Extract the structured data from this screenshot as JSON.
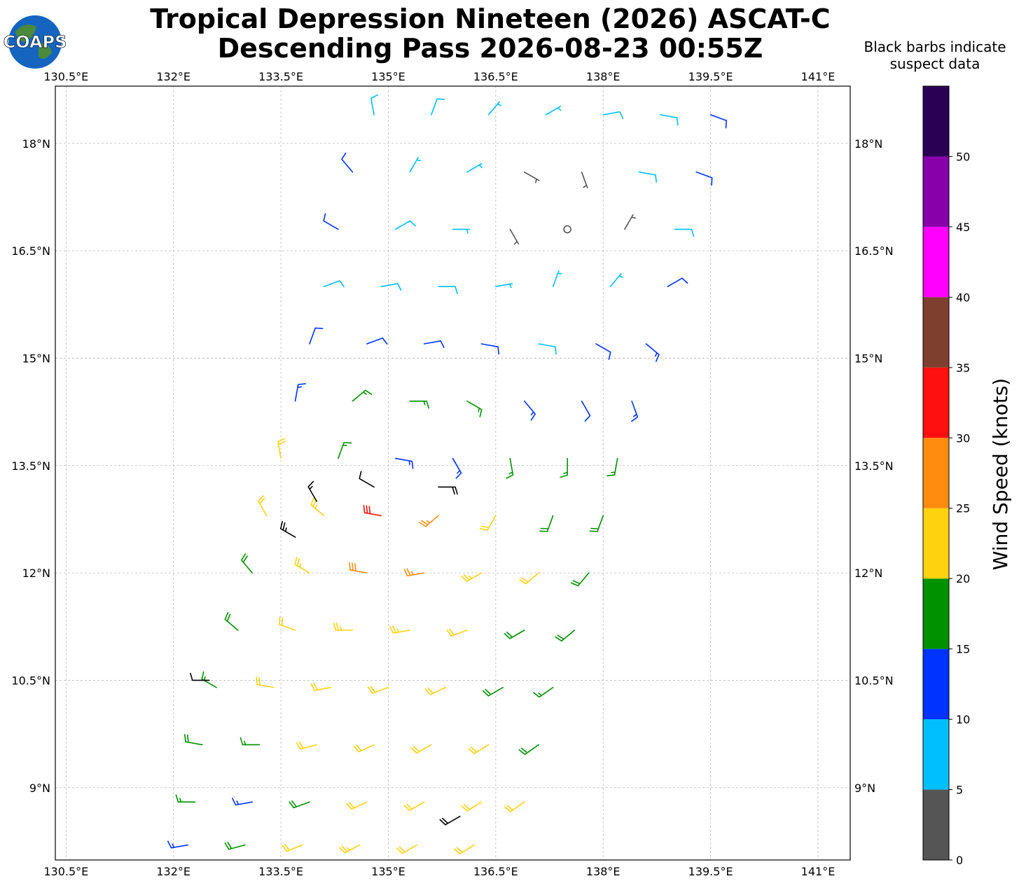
{
  "logo": "COAPS",
  "chart_data": {
    "type": "barbs",
    "title": [
      "Tropical Depression Nineteen (2026) ASCAT-C",
      "Descending Pass 2026-08-23 00:55Z"
    ],
    "note": [
      "Black barbs indicate",
      "suspect data"
    ],
    "xlim": [
      130.35,
      141.45
    ],
    "ylim": [
      7.99,
      18.8
    ],
    "xticks": [
      {
        "value": 130.5,
        "label": "130.5°E"
      },
      {
        "value": 132,
        "label": "132°E"
      },
      {
        "value": 133.5,
        "label": "133.5°E"
      },
      {
        "value": 135,
        "label": "135°E"
      },
      {
        "value": 136.5,
        "label": "136.5°E"
      },
      {
        "value": 138,
        "label": "138°E"
      },
      {
        "value": 139.5,
        "label": "139.5°E"
      },
      {
        "value": 141,
        "label": "141°E"
      }
    ],
    "yticks": [
      {
        "value": 9,
        "label": "9°N"
      },
      {
        "value": 10.5,
        "label": "10.5°N"
      },
      {
        "value": 12,
        "label": "12°N"
      },
      {
        "value": 13.5,
        "label": "13.5°N"
      },
      {
        "value": 15,
        "label": "15°N"
      },
      {
        "value": 16.5,
        "label": "16.5°N"
      },
      {
        "value": 18,
        "label": "18°N"
      }
    ],
    "grid": true,
    "suspect_color": "#000000",
    "barbs": [
      [
        134.8,
        18.4,
        8,
        350
      ],
      [
        135.6,
        18.4,
        8,
        20
      ],
      [
        136.4,
        18.4,
        7,
        40
      ],
      [
        137.2,
        18.4,
        7,
        60
      ],
      [
        138.0,
        18.4,
        8,
        80
      ],
      [
        138.8,
        18.4,
        9,
        100
      ],
      [
        139.5,
        18.4,
        12,
        110
      ],
      [
        134.5,
        17.6,
        11,
        320
      ],
      [
        135.3,
        17.6,
        7,
        30
      ],
      [
        136.1,
        17.6,
        6,
        60
      ],
      [
        136.9,
        17.6,
        4,
        120
      ],
      [
        137.7,
        17.6,
        4,
        160
      ],
      [
        138.5,
        17.6,
        8,
        100
      ],
      [
        139.3,
        17.6,
        11,
        110
      ],
      [
        134.3,
        16.8,
        12,
        300
      ],
      [
        135.1,
        16.8,
        8,
        60
      ],
      [
        135.9,
        16.8,
        7,
        90
      ],
      [
        136.7,
        16.8,
        3,
        150
      ],
      [
        137.5,
        16.8,
        2,
        0
      ],
      [
        138.3,
        16.8,
        4,
        30
      ],
      [
        139.0,
        16.8,
        9,
        90
      ],
      [
        134.1,
        16.0,
        9,
        70
      ],
      [
        134.9,
        16.0,
        8,
        80
      ],
      [
        135.7,
        16.0,
        8,
        90
      ],
      [
        136.5,
        16.0,
        7,
        80
      ],
      [
        137.3,
        16.0,
        5,
        20
      ],
      [
        138.1,
        16.0,
        7,
        40
      ],
      [
        138.9,
        16.0,
        12,
        60
      ],
      [
        133.9,
        15.2,
        12,
        20
      ],
      [
        134.7,
        15.2,
        11,
        70
      ],
      [
        135.5,
        15.2,
        10,
        80
      ],
      [
        136.3,
        15.2,
        10,
        100
      ],
      [
        137.1,
        15.2,
        9,
        100
      ],
      [
        137.9,
        15.2,
        12,
        120
      ],
      [
        138.6,
        15.2,
        13,
        130
      ],
      [
        133.7,
        14.4,
        13,
        10
      ],
      [
        134.5,
        14.4,
        16,
        50
      ],
      [
        135.3,
        14.4,
        17,
        90
      ],
      [
        136.1,
        14.4,
        15,
        120
      ],
      [
        136.9,
        14.4,
        13,
        140
      ],
      [
        137.7,
        14.4,
        12,
        150
      ],
      [
        138.4,
        14.4,
        13,
        160
      ],
      [
        133.5,
        13.6,
        20,
        350
      ],
      [
        134.3,
        13.6,
        17,
        20
      ],
      [
        135.1,
        13.6,
        13,
        100
      ],
      [
        135.9,
        13.6,
        14,
        150
      ],
      [
        136.7,
        13.6,
        16,
        170
      ],
      [
        137.5,
        13.6,
        15,
        180
      ],
      [
        138.2,
        13.6,
        16,
        190
      ],
      [
        133.3,
        12.8,
        21,
        330
      ],
      [
        134.1,
        12.8,
        23,
        310
      ],
      [
        134.9,
        12.8,
        32,
        280
      ],
      [
        135.7,
        12.8,
        26,
        230
      ],
      [
        136.5,
        12.8,
        22,
        210
      ],
      [
        137.3,
        12.8,
        19,
        200
      ],
      [
        138.0,
        12.8,
        18,
        200
      ],
      [
        133.1,
        12.0,
        19,
        320
      ],
      [
        133.9,
        12.0,
        24,
        300
      ],
      [
        134.7,
        12.0,
        28,
        280
      ],
      [
        135.5,
        12.0,
        27,
        260
      ],
      [
        136.3,
        12.0,
        23,
        240
      ],
      [
        137.1,
        12.0,
        22,
        230
      ],
      [
        137.8,
        12.0,
        18,
        220
      ],
      [
        132.9,
        11.2,
        18,
        310
      ],
      [
        133.7,
        11.2,
        22,
        290
      ],
      [
        134.5,
        11.2,
        23,
        270
      ],
      [
        135.3,
        11.2,
        23,
        260
      ],
      [
        136.1,
        11.2,
        22,
        250
      ],
      [
        136.9,
        11.2,
        19,
        240
      ],
      [
        137.6,
        11.2,
        18,
        230
      ],
      [
        132.6,
        10.4,
        17,
        300
      ],
      [
        133.4,
        10.4,
        21,
        280
      ],
      [
        134.2,
        10.4,
        22,
        260
      ],
      [
        135.0,
        10.4,
        22,
        250
      ],
      [
        135.8,
        10.4,
        21,
        245
      ],
      [
        136.6,
        10.4,
        18,
        240
      ],
      [
        137.3,
        10.4,
        17,
        235
      ],
      [
        132.4,
        9.6,
        18,
        280
      ],
      [
        133.2,
        9.6,
        17,
        270
      ],
      [
        134.0,
        9.6,
        21,
        255
      ],
      [
        134.8,
        9.6,
        22,
        245
      ],
      [
        135.6,
        9.6,
        22,
        240
      ],
      [
        136.4,
        9.6,
        21,
        238
      ],
      [
        137.1,
        9.6,
        18,
        235
      ],
      [
        132.3,
        8.8,
        17,
        270
      ],
      [
        133.1,
        8.8,
        13,
        260
      ],
      [
        133.9,
        8.8,
        18,
        250
      ],
      [
        134.7,
        8.8,
        22,
        245
      ],
      [
        135.5,
        8.8,
        22,
        240
      ],
      [
        136.3,
        8.8,
        22,
        238
      ],
      [
        136.9,
        8.8,
        22,
        235
      ],
      [
        132.2,
        8.2,
        14,
        260
      ],
      [
        133.0,
        8.2,
        18,
        255
      ],
      [
        133.8,
        8.2,
        22,
        248
      ],
      [
        134.6,
        8.2,
        23,
        242
      ],
      [
        135.4,
        8.2,
        22,
        240
      ],
      [
        136.2,
        8.2,
        22,
        238
      ]
    ],
    "suspect_barbs": [
      [
        134.0,
        13.0,
        15,
        330
      ],
      [
        134.8,
        13.2,
        12,
        300
      ],
      [
        135.7,
        13.2,
        20,
        90
      ],
      [
        133.7,
        12.5,
        25,
        300
      ],
      [
        136.0,
        8.6,
        20,
        240
      ],
      [
        132.5,
        10.5,
        8,
        270
      ]
    ],
    "colorbar": {
      "label": "Wind Speed (knots)",
      "lim": [
        0,
        55
      ],
      "ticks": [
        0,
        5,
        10,
        15,
        20,
        25,
        30,
        35,
        40,
        45,
        50
      ],
      "colors": [
        "#555555",
        "#00bfff",
        "#0033ff",
        "#009100",
        "#ffd20f",
        "#ff8c0f",
        "#ff1010",
        "#7f3f2f",
        "#ff00ff",
        "#8800aa",
        "#2a0055"
      ]
    }
  }
}
